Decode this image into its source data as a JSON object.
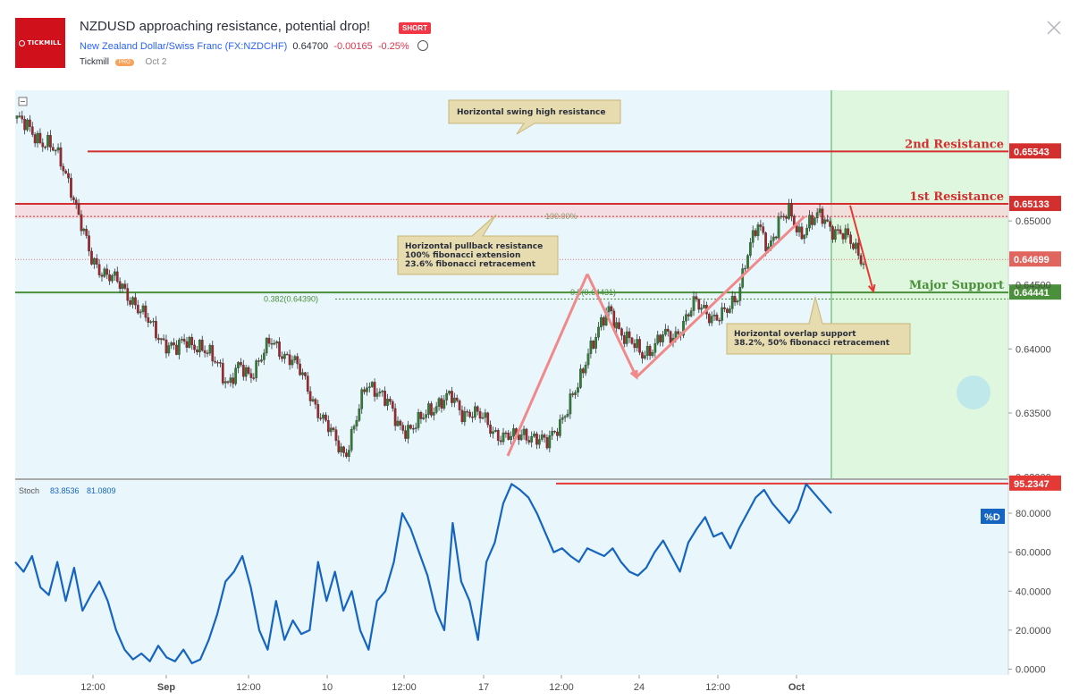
{
  "header": {
    "logo_text": "TICKMILL",
    "title": "NZDUSD approaching resistance, potential drop!",
    "badge": "SHORT",
    "symbol_name": "New Zealand Dollar/Swiss Franc (FX:NZDCHF)",
    "price": "0.64700",
    "change": "-0.00165",
    "change_pct": "-0.25%",
    "author": "Tickmill",
    "author_badge": "PRO",
    "date": "Oct 2"
  },
  "chart_data": [
    {
      "type": "candlestick",
      "title": "",
      "x_tick_labels": [
        "12:00",
        "Sep",
        "12:00",
        "10",
        "12:00",
        "17",
        "12:00",
        "24",
        "12:00",
        "Oct"
      ],
      "y_tick_labels": [
        "0.65000",
        "0.64500",
        "0.64000",
        "0.63500",
        "0.63000"
      ],
      "ylim": [
        0.6299,
        0.6602
      ],
      "levels": [
        {
          "label": "2nd Resistance",
          "value": 0.65543,
          "tag": "0.65543",
          "color": "#d32f2f"
        },
        {
          "label": "1st Resistance",
          "value": 0.65133,
          "tag": "0.65133",
          "color": "#d32f2f"
        },
        {
          "label": "Major Support",
          "value": 0.64441,
          "tag": "0.64441",
          "color": "#4a8f3a"
        }
      ],
      "current_price_tag": "0.64699",
      "current_price": 0.64699,
      "fib_labels": [
        {
          "text": "100.00%"
        },
        {
          "text": "0.382(0.64390)"
        },
        {
          "text": "0.5(0.64431)"
        }
      ],
      "annotations": [
        "Horizontal swing high resistance",
        "Horizontal pullback resistance\n100% fibonacci extension\n23.6% fibonacci retracement",
        "Horizontal overlap support\n38.2%, 50% fibonacci retracement"
      ],
      "close_path": [
        0.658,
        0.6572,
        0.6565,
        0.656,
        0.6548,
        0.653,
        0.6498,
        0.647,
        0.6462,
        0.6455,
        0.6447,
        0.6438,
        0.6425,
        0.6415,
        0.6405,
        0.6398,
        0.6408,
        0.6403,
        0.6395,
        0.639,
        0.6372,
        0.6385,
        0.638,
        0.6393,
        0.6405,
        0.6398,
        0.6392,
        0.6378,
        0.636,
        0.6343,
        0.633,
        0.6318,
        0.6342,
        0.6372,
        0.637,
        0.6358,
        0.634,
        0.6338,
        0.6342,
        0.6352,
        0.636,
        0.6362,
        0.635,
        0.6352,
        0.6345,
        0.6336,
        0.6332,
        0.633,
        0.6335,
        0.633,
        0.6325,
        0.634,
        0.6352,
        0.637,
        0.64,
        0.6415,
        0.643,
        0.6415,
        0.6405,
        0.6395,
        0.6402,
        0.641,
        0.6408,
        0.6422,
        0.6435,
        0.643,
        0.6425,
        0.6427,
        0.644,
        0.6475,
        0.6495,
        0.648,
        0.65,
        0.6505,
        0.649,
        0.65,
        0.6503,
        0.6495,
        0.649,
        0.648,
        0.647
      ]
    },
    {
      "type": "line",
      "title": "Stoch",
      "series": [
        {
          "name": "Stoch",
          "value_label": "83.8536"
        },
        {
          "name": "%D",
          "value_label": "81.0809"
        }
      ],
      "y_tick_labels": [
        "80.0000",
        "60.0000",
        "40.0000",
        "20.0000",
        "0.0000"
      ],
      "ylim": [
        -3,
        97
      ],
      "level_tag": "95.2347",
      "level": 95.2347,
      "values": [
        55,
        50,
        58,
        42,
        38,
        55,
        35,
        52,
        30,
        38,
        45,
        35,
        20,
        10,
        5,
        8,
        4,
        12,
        6,
        4,
        10,
        3,
        5,
        15,
        28,
        45,
        50,
        58,
        42,
        20,
        10,
        35,
        15,
        25,
        18,
        20,
        55,
        35,
        50,
        30,
        40,
        20,
        10,
        35,
        40,
        55,
        80,
        72,
        60,
        48,
        30,
        20,
        75,
        45,
        35,
        15,
        55,
        65,
        85,
        95,
        92,
        88,
        80,
        70,
        60,
        62,
        58,
        55,
        62,
        60,
        58,
        62,
        55,
        50,
        48,
        52,
        60,
        66,
        58,
        50,
        65,
        72,
        78,
        68,
        70,
        62,
        72,
        80,
        88,
        92,
        85,
        80,
        75,
        82,
        95,
        90,
        85,
        80
      ]
    }
  ]
}
